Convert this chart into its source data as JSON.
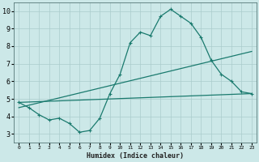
{
  "xlabel": "Humidex (Indice chaleur)",
  "bg_color": "#cce8e8",
  "grid_color": "#aacccc",
  "line_color": "#1a7a6e",
  "xlim": [
    -0.5,
    23.5
  ],
  "ylim": [
    2.5,
    10.5
  ],
  "xticks": [
    0,
    1,
    2,
    3,
    4,
    5,
    6,
    7,
    8,
    9,
    10,
    11,
    12,
    13,
    14,
    15,
    16,
    17,
    18,
    19,
    20,
    21,
    22,
    23
  ],
  "yticks": [
    3,
    4,
    5,
    6,
    7,
    8,
    9,
    10
  ],
  "line1_x": [
    0,
    1,
    2,
    3,
    4,
    5,
    6,
    7,
    8,
    9,
    10,
    11,
    12,
    13,
    14,
    15,
    16,
    17,
    18,
    19,
    20,
    21,
    22,
    23
  ],
  "line1_y": [
    4.8,
    4.5,
    4.1,
    3.8,
    3.9,
    3.6,
    3.1,
    3.2,
    3.9,
    5.3,
    6.4,
    8.2,
    8.8,
    8.6,
    9.7,
    10.1,
    9.7,
    9.3,
    8.5,
    7.2,
    6.4,
    6.0,
    5.4,
    5.3
  ],
  "line2_x": [
    0,
    23
  ],
  "line2_y": [
    4.8,
    5.3
  ],
  "line3_x": [
    0,
    23
  ],
  "line3_y": [
    4.5,
    7.7
  ]
}
